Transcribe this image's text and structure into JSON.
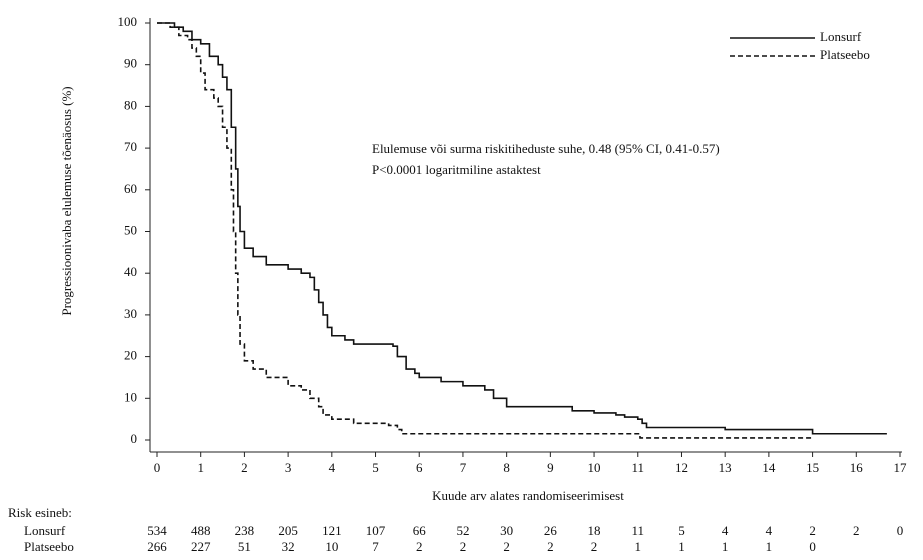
{
  "chart_data": {
    "type": "step",
    "ylabel": "Progressioonivaba elulemuse tõenäosus (%)",
    "xlabel": "Kuude arv alates randomiseerimisest",
    "annotations": [
      "Elulemuse või surma riskitiheduste suhe, 0.48 (95% CI, 0.41-0.57)",
      "P<0.0001 logaritmiline astaktest"
    ],
    "xlim": [
      0,
      17
    ],
    "ylim": [
      0,
      100
    ],
    "xticks": [
      0,
      1,
      2,
      3,
      4,
      5,
      6,
      7,
      8,
      9,
      10,
      11,
      12,
      13,
      14,
      15,
      16,
      17
    ],
    "yticks": [
      0,
      10,
      20,
      30,
      40,
      50,
      60,
      70,
      80,
      90,
      100
    ],
    "legend": "upper right",
    "series": [
      {
        "name": "Lonsurf",
        "color": "#111111",
        "dash": "solid",
        "x": [
          0,
          0.3,
          0.4,
          0.6,
          0.8,
          1.0,
          1.2,
          1.4,
          1.5,
          1.6,
          1.7,
          1.8,
          1.85,
          1.9,
          2.0,
          2.2,
          2.5,
          3.0,
          3.3,
          3.5,
          3.6,
          3.7,
          3.8,
          3.9,
          4.0,
          4.3,
          4.5,
          5.4,
          5.5,
          5.7,
          5.9,
          6.0,
          6.5,
          7.0,
          7.5,
          7.7,
          8.0,
          9.5,
          10.0,
          10.5,
          10.7,
          11.0,
          11.1,
          11.2,
          13.0,
          15.0,
          16.7
        ],
        "values": [
          100,
          100,
          99,
          98,
          96,
          95,
          92,
          90,
          87,
          84,
          75,
          65,
          56,
          50,
          46,
          44,
          42,
          41,
          40,
          39,
          36,
          33,
          30,
          27,
          25,
          24,
          23,
          22.5,
          20,
          17,
          16,
          15,
          14,
          13,
          12,
          10,
          8,
          7,
          6.5,
          6,
          5.5,
          5,
          4,
          3,
          2.5,
          1.5,
          1.5
        ]
      },
      {
        "name": "Platseebo",
        "color": "#111111",
        "dash": "dashed",
        "x": [
          0,
          0.3,
          0.5,
          0.7,
          0.8,
          0.9,
          1.0,
          1.1,
          1.3,
          1.4,
          1.5,
          1.6,
          1.7,
          1.75,
          1.8,
          1.85,
          1.9,
          2.0,
          2.2,
          2.5,
          3.0,
          3.3,
          3.5,
          3.7,
          3.8,
          4.0,
          4.5,
          5.3,
          5.5,
          5.6,
          11.05,
          15.0
        ],
        "values": [
          100,
          99,
          97,
          96,
          94,
          92,
          88,
          84,
          82,
          80,
          75,
          70,
          60,
          50,
          40,
          30,
          23,
          19,
          17,
          15,
          13,
          12,
          10,
          8,
          6,
          5,
          4,
          3.5,
          2.5,
          1.5,
          0.5,
          0.5
        ]
      }
    ]
  },
  "risk_table": {
    "title": "Risk esineb:",
    "rows": [
      {
        "name": "Lonsurf",
        "values": [
          534,
          488,
          238,
          205,
          121,
          107,
          66,
          52,
          30,
          26,
          18,
          11,
          5,
          4,
          4,
          2,
          2,
          0
        ]
      },
      {
        "name": "Platseebo",
        "values": [
          266,
          227,
          51,
          32,
          10,
          7,
          2,
          2,
          2,
          2,
          2,
          1,
          1,
          1,
          1,
          0
        ]
      }
    ]
  }
}
